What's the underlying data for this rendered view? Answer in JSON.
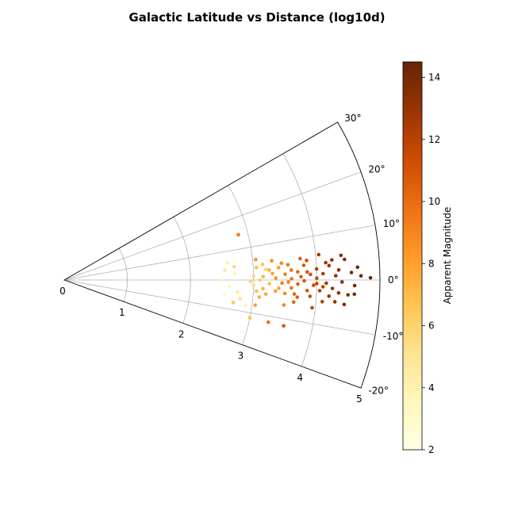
{
  "chart_data": {
    "type": "scatter",
    "projection": "polar-sector",
    "title": "Galactic Latitude vs Distance (log10d)",
    "radial_axis": {
      "range": [
        0,
        5
      ],
      "ticks": [
        "0",
        "1",
        "2",
        "3",
        "4",
        "5"
      ]
    },
    "angular_axis": {
      "unit": "degrees",
      "range": [
        -20,
        30
      ],
      "ticks": [
        "-20°",
        "-10°",
        "0°",
        "10°",
        "20°",
        "30°"
      ]
    },
    "grid": true,
    "colorbar": {
      "label": "Apparent Magnitude",
      "range": [
        2,
        14.5
      ],
      "ticks": [
        "2",
        "4",
        "6",
        "8",
        "10",
        "12",
        "14"
      ],
      "colormap": "YlOrBr",
      "stops": [
        "#ffffe5",
        "#fff7bc",
        "#fee391",
        "#fec44f",
        "#fe9929",
        "#ec7014",
        "#cc4c02",
        "#993404",
        "#662506"
      ]
    },
    "points": [
      {
        "r": 2.85,
        "lat": 14.6,
        "mag": 9.5
      },
      {
        "r": 2.6,
        "lat": 6.0,
        "mag": 4.2
      },
      {
        "r": 2.7,
        "lat": 4.5,
        "mag": 5.5
      },
      {
        "r": 2.55,
        "lat": 3.5,
        "mag": 4.8
      },
      {
        "r": 2.5,
        "lat": 0.6,
        "mag": 3.0
      },
      {
        "r": 2.7,
        "lat": 2.0,
        "mag": 3.8
      },
      {
        "r": 2.62,
        "lat": -2.3,
        "mag": 3.6
      },
      {
        "r": 2.75,
        "lat": -4.0,
        "mag": 4.5
      },
      {
        "r": 2.55,
        "lat": -5.3,
        "mag": 3.2
      },
      {
        "r": 2.8,
        "lat": -6.0,
        "mag": 5.1
      },
      {
        "r": 2.7,
        "lat": -7.6,
        "mag": 6.5
      },
      {
        "r": 2.9,
        "lat": -8.0,
        "mag": 4.0
      },
      {
        "r": 3.05,
        "lat": -7.5,
        "mag": 8.2
      },
      {
        "r": 3.0,
        "lat": -11.5,
        "mag": 6.8
      },
      {
        "r": 3.3,
        "lat": -11.7,
        "mag": 9.8
      },
      {
        "r": 3.55,
        "lat": -11.8,
        "mag": 11.0
      },
      {
        "r": 3.5,
        "lat": -6.5,
        "mag": 9.0
      },
      {
        "r": 3.1,
        "lat": -5.0,
        "mag": 7.5
      },
      {
        "r": 3.05,
        "lat": 6.1,
        "mag": 8.5
      },
      {
        "r": 3.15,
        "lat": 4.5,
        "mag": 6.5
      },
      {
        "r": 3.3,
        "lat": 5.3,
        "mag": 8.8
      },
      {
        "r": 3.05,
        "lat": 3.7,
        "mag": 7.0
      },
      {
        "r": 3.2,
        "lat": 3.0,
        "mag": 6.0
      },
      {
        "r": 3.0,
        "lat": 1.2,
        "mag": 5.6
      },
      {
        "r": 3.1,
        "lat": 0.0,
        "mag": 6.2
      },
      {
        "r": 3.0,
        "lat": -1.5,
        "mag": 5.3
      },
      {
        "r": 3.15,
        "lat": -2.5,
        "mag": 7.4
      },
      {
        "r": 3.05,
        "lat": -3.3,
        "mag": 6.9
      },
      {
        "r": 3.2,
        "lat": -4.0,
        "mag": 7.8
      },
      {
        "r": 3.25,
        "lat": -1.0,
        "mag": 7.0
      },
      {
        "r": 3.3,
        "lat": 1.8,
        "mag": 7.9
      },
      {
        "r": 3.4,
        "lat": 3.3,
        "mag": 8.4
      },
      {
        "r": 3.4,
        "lat": -2.2,
        "mag": 8.0
      },
      {
        "r": 3.35,
        "lat": 0.5,
        "mag": 8.6
      },
      {
        "r": 3.45,
        "lat": -0.8,
        "mag": 9.1
      },
      {
        "r": 3.5,
        "lat": 1.5,
        "mag": 9.3
      },
      {
        "r": 3.55,
        "lat": 3.9,
        "mag": 9.6
      },
      {
        "r": 3.6,
        "lat": 2.5,
        "mag": 9.9
      },
      {
        "r": 3.55,
        "lat": -0.5,
        "mag": 9.4
      },
      {
        "r": 3.6,
        "lat": -2.0,
        "mag": 9.8
      },
      {
        "r": 3.5,
        "lat": -3.5,
        "mag": 8.9
      },
      {
        "r": 3.65,
        "lat": -3.5,
        "mag": 10.2
      },
      {
        "r": 3.7,
        "lat": -1.0,
        "mag": 10.4
      },
      {
        "r": 3.75,
        "lat": 0.8,
        "mag": 10.6
      },
      {
        "r": 3.7,
        "lat": 2.0,
        "mag": 10.1
      },
      {
        "r": 3.8,
        "lat": 3.5,
        "mag": 10.8
      },
      {
        "r": 3.85,
        "lat": -2.5,
        "mag": 11.0
      },
      {
        "r": 3.8,
        "lat": -0.2,
        "mag": 10.9
      },
      {
        "r": 3.9,
        "lat": 1.3,
        "mag": 11.3
      },
      {
        "r": 3.95,
        "lat": -1.2,
        "mag": 11.5
      },
      {
        "r": 4.0,
        "lat": 0.4,
        "mag": 11.8
      },
      {
        "r": 4.0,
        "lat": 2.5,
        "mag": 12.0
      },
      {
        "r": 4.05,
        "lat": -2.4,
        "mag": 12.2
      },
      {
        "r": 4.1,
        "lat": 1.4,
        "mag": 12.4
      },
      {
        "r": 4.15,
        "lat": -0.7,
        "mag": 12.6
      },
      {
        "r": 4.2,
        "lat": 3.1,
        "mag": 12.8
      },
      {
        "r": 4.25,
        "lat": -1.8,
        "mag": 13.0
      },
      {
        "r": 4.3,
        "lat": 0.9,
        "mag": 13.2
      },
      {
        "r": 4.35,
        "lat": 2.1,
        "mag": 13.4
      },
      {
        "r": 4.4,
        "lat": -0.4,
        "mag": 13.5
      },
      {
        "r": 4.45,
        "lat": 4.2,
        "mag": 13.6
      },
      {
        "r": 4.5,
        "lat": -3.0,
        "mag": 13.8
      },
      {
        "r": 4.55,
        "lat": 1.5,
        "mag": 14.0
      },
      {
        "r": 4.6,
        "lat": -1.1,
        "mag": 14.1
      },
      {
        "r": 4.7,
        "lat": 0.8,
        "mag": 14.2
      },
      {
        "r": 4.85,
        "lat": 0.4,
        "mag": 14.3
      },
      {
        "r": 4.25,
        "lat": 4.3,
        "mag": 13.1
      },
      {
        "r": 4.3,
        "lat": -4.6,
        "mag": 13.0
      },
      {
        "r": 4.4,
        "lat": 5.1,
        "mag": 13.7
      },
      {
        "r": 4.45,
        "lat": -5.0,
        "mag": 13.9
      },
      {
        "r": 4.05,
        "lat": 5.7,
        "mag": 12.5
      },
      {
        "r": 4.1,
        "lat": -4.8,
        "mag": 12.3
      },
      {
        "r": 3.95,
        "lat": -6.4,
        "mag": 11.9
      },
      {
        "r": 3.75,
        "lat": 5.2,
        "mag": 10.7
      },
      {
        "r": 3.85,
        "lat": 4.6,
        "mag": 11.2
      },
      {
        "r": 4.15,
        "lat": 3.8,
        "mag": 12.7
      },
      {
        "r": 4.2,
        "lat": -3.5,
        "mag": 12.9
      },
      {
        "r": 4.6,
        "lat": -2.8,
        "mag": 14.0
      },
      {
        "r": 4.65,
        "lat": 2.5,
        "mag": 14.1
      },
      {
        "r": 3.65,
        "lat": -5.5,
        "mag": 10.3
      },
      {
        "r": 3.45,
        "lat": 4.4,
        "mag": 9.0
      },
      {
        "r": 3.35,
        "lat": -3.0,
        "mag": 8.3
      },
      {
        "r": 3.9,
        "lat": -3.8,
        "mag": 11.4
      },
      {
        "r": 4.0,
        "lat": -0.8,
        "mag": 11.7
      },
      {
        "r": 4.35,
        "lat": -2.7,
        "mag": 13.3
      },
      {
        "r": 3.25,
        "lat": 2.8,
        "mag": 7.6
      },
      {
        "r": 3.6,
        "lat": 0.3,
        "mag": 9.7
      },
      {
        "r": 3.85,
        "lat": 1.9,
        "mag": 11.1
      },
      {
        "r": 4.1,
        "lat": -1.5,
        "mag": 12.1
      },
      {
        "r": 3.7,
        "lat": -4.2,
        "mag": 10.5
      },
      {
        "r": 3.15,
        "lat": 1.0,
        "mag": 7.2
      },
      {
        "r": 2.95,
        "lat": -0.5,
        "mag": 5.9
      }
    ]
  }
}
